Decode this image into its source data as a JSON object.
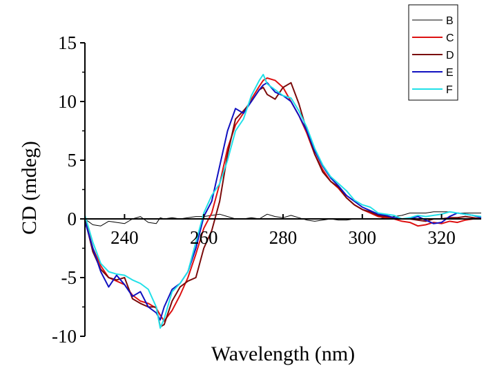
{
  "chart_data": {
    "type": "line",
    "title": "",
    "xlabel": "Wavelength (nm)",
    "ylabel": "CD (mdeg)",
    "xlim": [
      230,
      330
    ],
    "ylim": [
      -10,
      15
    ],
    "xticks": [
      240,
      260,
      280,
      300,
      320
    ],
    "yticks": [
      15,
      10,
      5,
      0,
      -5,
      -10
    ],
    "xtick_labels": [
      "240",
      "260",
      "280",
      "300",
      "320"
    ],
    "ytick_labels": [
      "15",
      "10",
      "5",
      "0",
      "-5",
      "-10"
    ],
    "grid": false,
    "legend_position": "top-right",
    "x": [
      230,
      232,
      234,
      236,
      238,
      240,
      242,
      244,
      246,
      248,
      249,
      250,
      252,
      254,
      256,
      258,
      260,
      262,
      264,
      266,
      268,
      270,
      272,
      274,
      275,
      276,
      278,
      280,
      282,
      284,
      286,
      288,
      290,
      292,
      294,
      296,
      298,
      300,
      302,
      304,
      306,
      308,
      310,
      312,
      314,
      316,
      318,
      320,
      322,
      324,
      326,
      328,
      330
    ],
    "series": [
      {
        "name": "B",
        "color": "#000000",
        "values": [
          0.0,
          -0.5,
          -0.6,
          -0.2,
          -0.3,
          -0.4,
          0.0,
          0.2,
          -0.3,
          -0.4,
          0.1,
          0.0,
          0.1,
          0.0,
          0.1,
          0.2,
          0.2,
          0.3,
          0.4,
          0.2,
          0.0,
          0.0,
          0.1,
          0.0,
          0.2,
          0.4,
          0.2,
          0.1,
          0.3,
          0.1,
          -0.1,
          -0.2,
          -0.1,
          0.0,
          -0.1,
          -0.1,
          0.0,
          0.0,
          0.0,
          0.0,
          0.1,
          0.2,
          0.3,
          0.5,
          0.5,
          0.5,
          0.6,
          0.6,
          0.6,
          0.5,
          0.5,
          0.5,
          0.5
        ]
      },
      {
        "name": "C",
        "color": "#dd1010",
        "values": [
          0.0,
          -2.5,
          -4.0,
          -5.0,
          -5.3,
          -5.6,
          -6.5,
          -7.0,
          -7.2,
          -7.6,
          -8.2,
          -8.7,
          -7.8,
          -6.5,
          -5.0,
          -3.0,
          -0.8,
          0.5,
          3.0,
          6.0,
          8.0,
          9.0,
          10.2,
          11.3,
          11.8,
          12.0,
          11.8,
          11.2,
          10.0,
          8.8,
          7.3,
          5.5,
          4.2,
          3.2,
          2.6,
          1.8,
          1.2,
          0.8,
          0.5,
          0.2,
          0.1,
          0.0,
          -0.2,
          -0.3,
          -0.6,
          -0.5,
          -0.3,
          -0.4,
          -0.2,
          -0.3,
          -0.1,
          0.0,
          0.0
        ]
      },
      {
        "name": "D",
        "color": "#7a0a0a",
        "values": [
          0.0,
          -2.8,
          -4.3,
          -5.0,
          -5.2,
          -5.0,
          -6.8,
          -7.2,
          -7.5,
          -7.5,
          -9.2,
          -9.0,
          -7.0,
          -5.8,
          -5.3,
          -5.0,
          -2.5,
          -1.0,
          1.5,
          5.5,
          8.5,
          9.2,
          10.0,
          11.0,
          11.2,
          10.6,
          10.2,
          11.2,
          11.6,
          9.8,
          7.5,
          5.5,
          4.0,
          3.2,
          2.7,
          1.8,
          1.2,
          0.8,
          0.6,
          0.3,
          0.2,
          0.1,
          0.0,
          0.0,
          -0.1,
          -0.2,
          0.0,
          0.0,
          0.1,
          0.1,
          0.2,
          0.1,
          0.0
        ]
      },
      {
        "name": "E",
        "color": "#1010c0",
        "values": [
          -0.2,
          -2.5,
          -4.5,
          -5.8,
          -4.8,
          -5.6,
          -6.6,
          -6.2,
          -7.5,
          -8.0,
          -8.6,
          -7.5,
          -6.0,
          -5.5,
          -4.5,
          -2.5,
          0.2,
          1.5,
          4.5,
          7.5,
          9.4,
          9.0,
          10.0,
          11.0,
          11.4,
          11.6,
          10.8,
          10.5,
          10.0,
          8.8,
          7.5,
          5.8,
          4.5,
          3.5,
          2.8,
          2.0,
          1.5,
          1.0,
          0.7,
          0.4,
          0.3,
          0.1,
          0.0,
          0.0,
          0.2,
          -0.1,
          -0.4,
          -0.3,
          0.2,
          0.5,
          0.4,
          0.3,
          0.1
        ]
      },
      {
        "name": "F",
        "color": "#20e0e8",
        "values": [
          0.3,
          -2.0,
          -3.8,
          -4.5,
          -4.7,
          -4.8,
          -5.2,
          -5.5,
          -6.0,
          -7.5,
          -9.3,
          -8.5,
          -6.2,
          -5.5,
          -4.5,
          -2.0,
          0.5,
          2.0,
          3.0,
          5.0,
          7.5,
          8.5,
          10.5,
          11.8,
          12.3,
          11.5,
          11.0,
          10.5,
          10.3,
          9.2,
          7.8,
          6.0,
          4.6,
          3.6,
          3.0,
          2.4,
          1.6,
          1.2,
          1.0,
          0.5,
          0.4,
          0.3,
          0.0,
          0.1,
          0.3,
          0.2,
          0.3,
          0.4,
          0.6,
          0.5,
          0.4,
          0.3,
          0.2
        ]
      }
    ]
  }
}
